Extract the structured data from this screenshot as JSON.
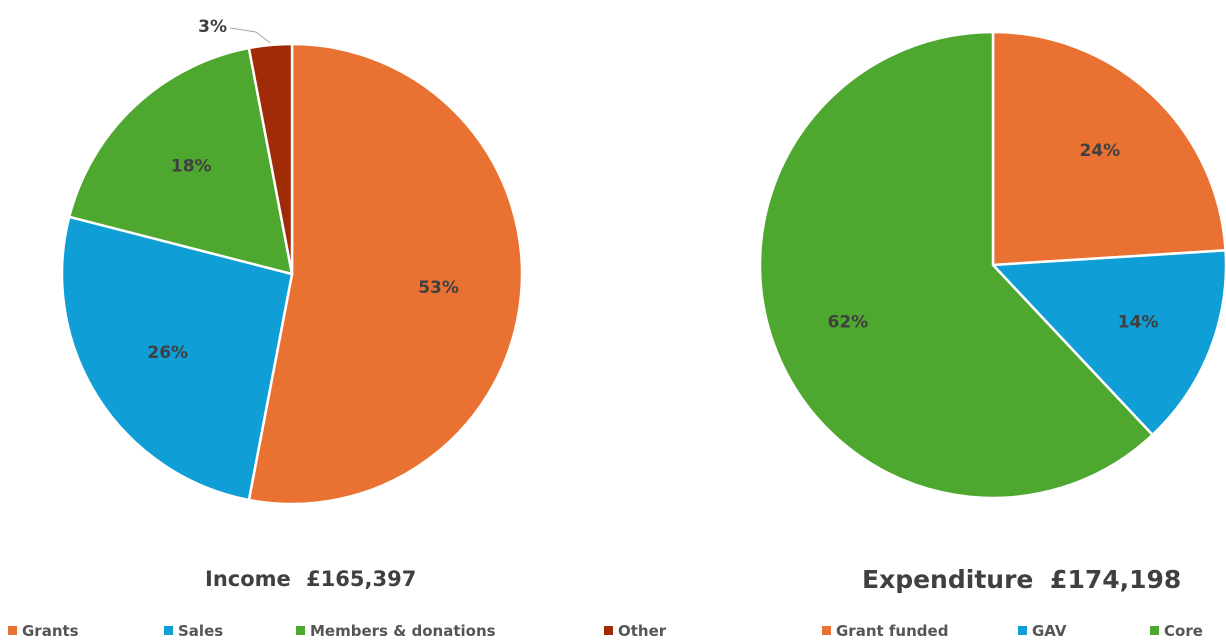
{
  "chart_data": [
    {
      "type": "pie",
      "title": "Income  £165,397",
      "series": [
        {
          "name": "Grants",
          "value": 53,
          "label": "53%",
          "color": "#E97132"
        },
        {
          "name": "Sales",
          "value": 26,
          "label": "26%",
          "color": "#0F9ED5"
        },
        {
          "name": "Members & donations",
          "value": 18,
          "label": "18%",
          "color": "#4EA72E"
        },
        {
          "name": "Other",
          "value": 3,
          "label": "3%",
          "color": "#A02B07"
        }
      ],
      "legend": "bottom"
    },
    {
      "type": "pie",
      "title": "Expenditure  £174,198",
      "series": [
        {
          "name": "Grant funded",
          "value": 24,
          "label": "24%",
          "color": "#E97132"
        },
        {
          "name": "GAV",
          "value": 14,
          "label": "14%",
          "color": "#0F9ED5"
        },
        {
          "name": "Core",
          "value": 62,
          "label": "62%",
          "color": "#4EA72E"
        }
      ],
      "legend": "bottom"
    }
  ]
}
